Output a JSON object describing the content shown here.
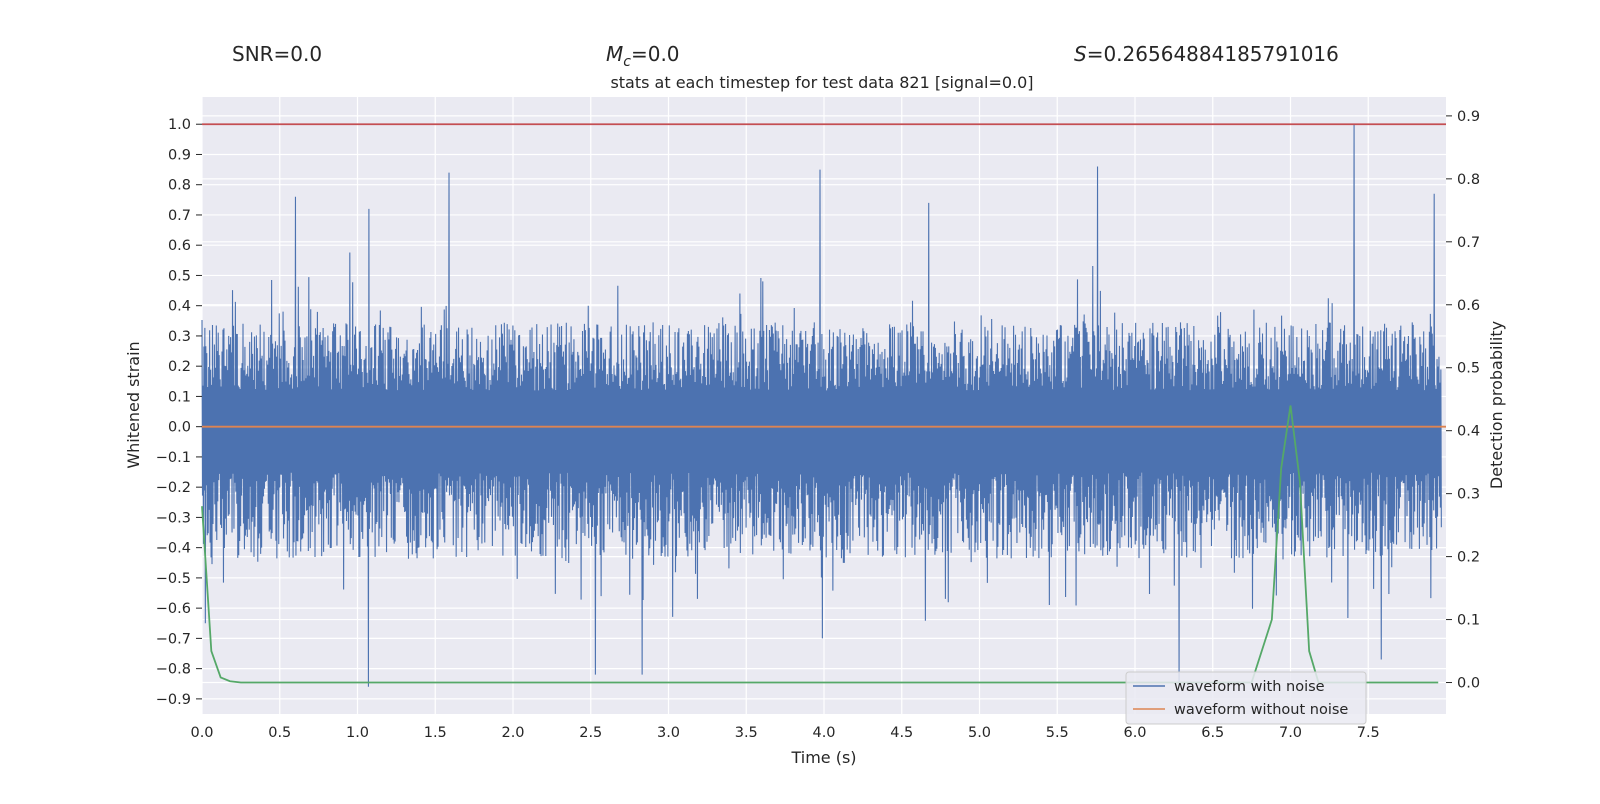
{
  "header": {
    "snr_label": "SNR=0.0",
    "mc_symbol": "M",
    "mc_subscript": "c",
    "mc_value": "=0.0",
    "s_symbol": "S",
    "s_value": "=0.26564884185791016"
  },
  "chart_data": {
    "type": "line",
    "title": "stats at each timestep for test data 821 [signal=0.0]",
    "xlabel": "Time (s)",
    "ylabel": "Whitened strain",
    "ylabel_right": "Detection probability",
    "xlim": [
      0.0,
      8.0
    ],
    "ylim": [
      -0.95,
      1.09
    ],
    "ylim_right": [
      -0.05,
      0.93
    ],
    "x_ticks": [
      "0.0",
      "0.5",
      "1.0",
      "1.5",
      "2.0",
      "2.5",
      "3.0",
      "3.5",
      "4.0",
      "4.5",
      "5.0",
      "5.5",
      "6.0",
      "6.5",
      "7.0",
      "7.5"
    ],
    "y_ticks": [
      "1.0",
      "0.9",
      "0.8",
      "0.7",
      "0.6",
      "0.5",
      "0.4",
      "0.3",
      "0.2",
      "0.1",
      "0.0",
      "−0.1",
      "−0.2",
      "−0.3",
      "−0.4",
      "−0.5",
      "−0.6",
      "−0.7",
      "−0.8",
      "−0.9"
    ],
    "y_tick_values": [
      1.0,
      0.9,
      0.8,
      0.7,
      0.6,
      0.5,
      0.4,
      0.3,
      0.2,
      0.1,
      0.0,
      -0.1,
      -0.2,
      -0.3,
      -0.4,
      -0.5,
      -0.6,
      -0.7,
      -0.8,
      -0.9
    ],
    "y2_ticks": [
      "0.9",
      "0.8",
      "0.7",
      "0.6",
      "0.5",
      "0.4",
      "0.3",
      "0.2",
      "0.1",
      "0.0"
    ],
    "y2_tick_values": [
      0.9,
      0.8,
      0.7,
      0.6,
      0.5,
      0.4,
      0.3,
      0.2,
      0.1,
      0.0
    ],
    "grid": true,
    "legend_position": "bottom-right",
    "series": [
      {
        "name": "waveform with noise",
        "color": "#4c72b0",
        "axis": "left",
        "envelope_positive_base": 0.3,
        "envelope_negative_base": -0.38,
        "notable_peaks": [
          {
            "x": 0.02,
            "y": -0.65
          },
          {
            "x": 0.6,
            "y": 0.76
          },
          {
            "x": 1.07,
            "y": -0.86
          },
          {
            "x": 1.07,
            "y": 0.72
          },
          {
            "x": 1.59,
            "y": 0.84
          },
          {
            "x": 2.53,
            "y": -0.82
          },
          {
            "x": 2.83,
            "y": -0.82
          },
          {
            "x": 3.97,
            "y": 0.85
          },
          {
            "x": 3.99,
            "y": -0.7
          },
          {
            "x": 4.67,
            "y": 0.74
          },
          {
            "x": 5.76,
            "y": 0.86
          },
          {
            "x": 6.28,
            "y": -0.85
          },
          {
            "x": 7.41,
            "y": 1.0
          },
          {
            "x": 7.58,
            "y": -0.77
          },
          {
            "x": 7.92,
            "y": 0.77
          }
        ]
      },
      {
        "name": "waveform without noise",
        "color": "#dd8452",
        "axis": "left",
        "x": [
          0.0,
          8.0
        ],
        "y": [
          0.0,
          0.0
        ]
      },
      {
        "name": "",
        "color": "#55a868",
        "axis": "right",
        "x": [
          0.0,
          0.06,
          0.12,
          0.18,
          0.25,
          0.4,
          1.0,
          3.0,
          5.0,
          6.5,
          6.75,
          6.88,
          6.94,
          7.0,
          7.06,
          7.12,
          7.18,
          7.25,
          7.4,
          7.95
        ],
        "y": [
          0.28,
          0.05,
          0.008,
          0.002,
          0.0,
          0.0,
          0.0,
          0.0,
          0.0,
          0.0,
          0.0,
          0.1,
          0.34,
          0.44,
          0.32,
          0.05,
          0.0,
          0.0,
          0.0,
          0.0
        ]
      },
      {
        "name": "",
        "color": "#c44e52",
        "axis": "left",
        "x": [
          0.0,
          8.0
        ],
        "y": [
          1.0,
          1.0
        ]
      }
    ]
  }
}
